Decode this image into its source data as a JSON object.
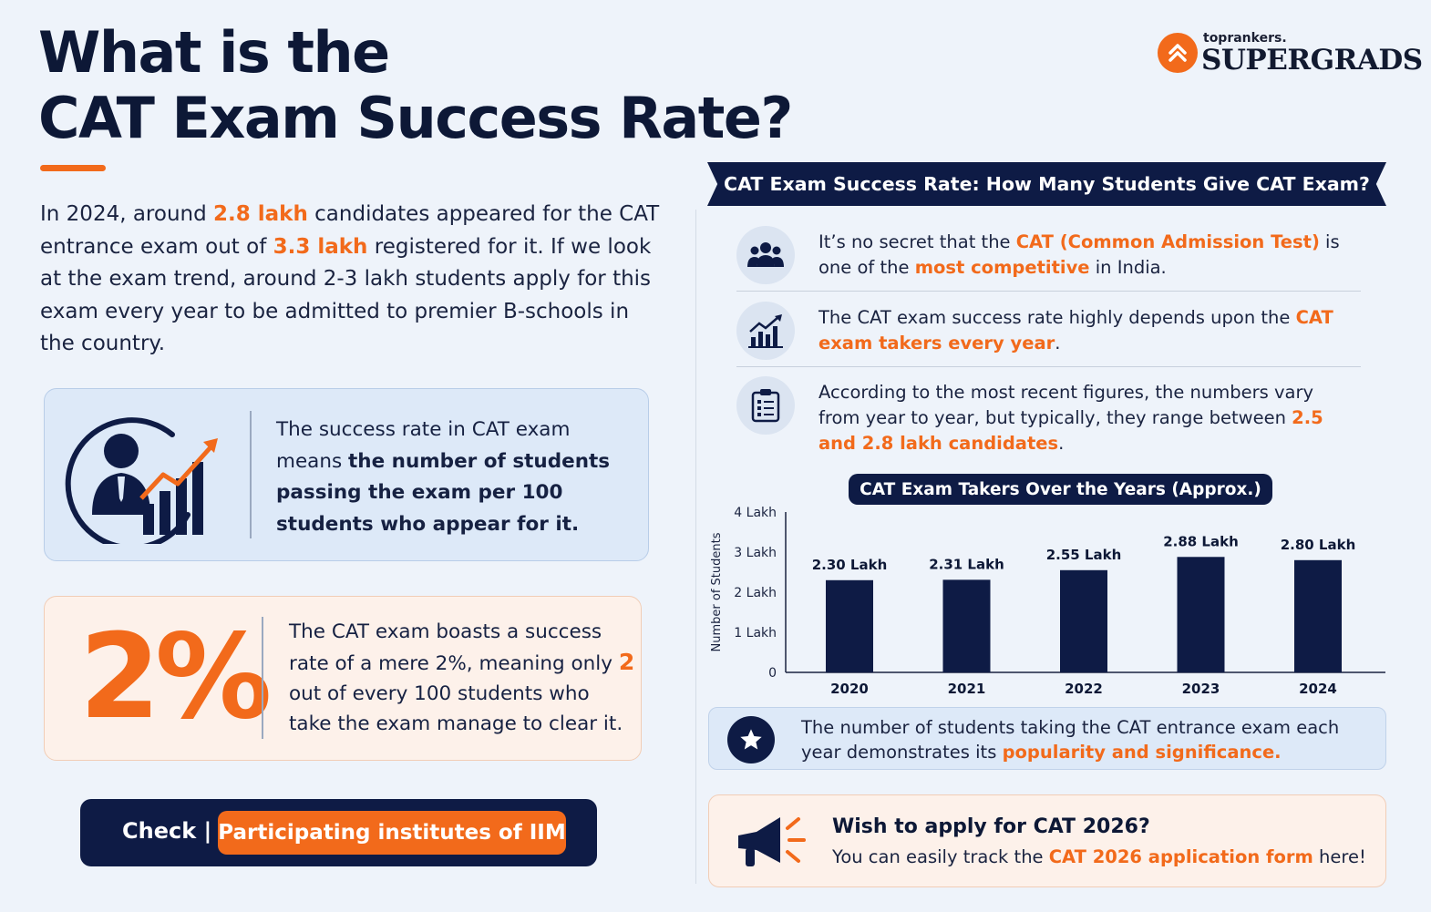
{
  "brand": {
    "small": "toprankers.",
    "big": "SUPERGRADS"
  },
  "title": {
    "line1": "What is the",
    "line2": "CAT Exam Success Rate?"
  },
  "intro": {
    "p1": "In 2024, around ",
    "v1": "2.8 lakh",
    "p2": " candidates appeared for the CAT entrance exam out of ",
    "v2": "3.3 lakh",
    "p3": " registered for it. If we look at the exam trend, around 2-3 lakh students apply for this exam every year to be admitted to premier B-schools in the country."
  },
  "definition": {
    "plain": "The success rate in CAT exam means ",
    "bold": "the number of students passing the exam per 100 students who appear for it."
  },
  "rate": {
    "big": "2%",
    "t1": "The CAT exam boasts a success rate of a mere 2%, meaning only ",
    "num": "2",
    "t2": " out of every 100 students who take the exam manage to clear it."
  },
  "check": {
    "label": "Check |",
    "button": "Participating institutes of IIM"
  },
  "banner": "CAT Exam Success Rate: How Many Students Give CAT Exam?",
  "features": [
    {
      "icon": "group-icon",
      "t1": "It’s no secret that the ",
      "h1": "CAT (Common Admission Test)",
      "t2": " is one of the ",
      "h2": "most competitive",
      "t3": " in India."
    },
    {
      "icon": "growth-chart-icon",
      "t1": "The CAT exam success rate highly depends upon the ",
      "h1": "CAT exam takers every year",
      "t2": "."
    },
    {
      "icon": "clipboard-icon",
      "t1": "According to the most recent figures, the numbers vary from year to year, but typically, they range between ",
      "h1": "2.5 and 2.8 lakh candidates",
      "t2": "."
    }
  ],
  "chart_data": {
    "type": "bar",
    "title": "CAT Exam Takers Over the Years (Approx.)",
    "ylabel": "Number of Students",
    "categories": [
      "2020",
      "2021",
      "2022",
      "2023",
      "2024"
    ],
    "values": [
      2.3,
      2.31,
      2.55,
      2.88,
      2.8
    ],
    "labels": [
      "2.30 Lakh",
      "2.31 Lakh",
      "2.55 Lakh",
      "2.88 Lakh",
      "2.80 Lakh"
    ],
    "yticks": [
      0,
      1,
      2,
      3,
      4
    ],
    "ytick_labels": [
      "0",
      "1 Lakh",
      "2 Lakh",
      "3 Lakh",
      "4 Lakh"
    ],
    "ylim": [
      0,
      4
    ],
    "grid": false,
    "bar_color": "#0e1b45"
  },
  "popularity": {
    "t1": "The number of students taking the CAT entrance exam each year demonstrates its ",
    "h1": "popularity and significance."
  },
  "apply": {
    "title": "Wish to apply for CAT 2026?",
    "t1": "You can easily track the ",
    "h1": "CAT 2026 application form",
    "t2": " here!"
  },
  "colors": {
    "accent": "#f26a1b",
    "navy": "#0e1b45",
    "background": "#eef3fa"
  }
}
